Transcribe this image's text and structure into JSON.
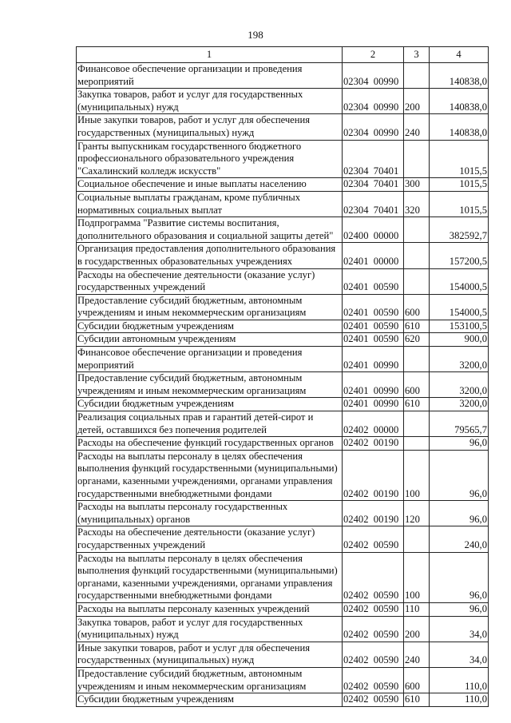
{
  "page_number": "198",
  "table": {
    "headers": [
      "1",
      "2",
      "3",
      "4"
    ],
    "rows": [
      [
        "Финансовое обеспечение организации и проведения мероприятий",
        "02304  00990",
        "",
        "140838,0"
      ],
      [
        "Закупка товаров, работ и услуг для государственных (муниципальных) нужд",
        "02304  00990",
        "200",
        "140838,0"
      ],
      [
        "Иные закупки товаров, работ и услуг для обеспечения государственных (муниципальных) нужд",
        "02304  00990",
        "240",
        "140838,0"
      ],
      [
        "Гранты выпускникам государственного бюджетного профессионального образовательного учреждения \"Сахалинский колледж искусств\"",
        "02304  70401",
        "",
        "1015,5"
      ],
      [
        "Социальное обеспечение и иные выплаты населению",
        "02304  70401",
        "300",
        "1015,5"
      ],
      [
        "Социальные выплаты гражданам, кроме публичных нормативных социальных выплат",
        "02304  70401",
        "320",
        "1015,5"
      ],
      [
        "Подпрограмма \"Развитие системы воспитания, дополнительного образования и социальной защиты детей\"",
        "02400  00000",
        "",
        "382592,7"
      ],
      [
        "Организация предоставления дополнительного образования в государственных образовательных учреждениях",
        "02401  00000",
        "",
        "157200,5"
      ],
      [
        "Расходы на обеспечение деятельности (оказание услуг) государственных учреждений",
        "02401  00590",
        "",
        "154000,5"
      ],
      [
        "Предоставление субсидий бюджетным, автономным учреждениям и иным некоммерческим организациям",
        "02401  00590",
        "600",
        "154000,5"
      ],
      [
        "Субсидии бюджетным учреждениям",
        "02401  00590",
        "610",
        "153100,5"
      ],
      [
        "Субсидии автономным учреждениям",
        "02401  00590",
        "620",
        "900,0"
      ],
      [
        "Финансовое обеспечение организации и проведения мероприятий",
        "02401  00990",
        "",
        "3200,0"
      ],
      [
        "Предоставление субсидий бюджетным, автономным учреждениям и иным некоммерческим организациям",
        "02401  00990",
        "600",
        "3200,0"
      ],
      [
        "Субсидии бюджетным учреждениям",
        "02401  00990",
        "610",
        "3200,0"
      ],
      [
        "Реализация социальных прав и гарантий детей-сирот и детей, оставшихся без попечения родителей",
        "02402  00000",
        "",
        "79565,7"
      ],
      [
        "Расходы на обеспечение функций государственных органов",
        "02402  00190",
        "",
        "96,0"
      ],
      [
        "Расходы на выплаты персоналу в целях обеспечения выполнения функций государственными (муниципальными) органами, казенными учреждениями, органами управления государственными внебюджетными фондами",
        "02402  00190",
        "100",
        "96,0"
      ],
      [
        "Расходы на выплаты персоналу государственных (муниципальных) органов",
        "02402  00190",
        "120",
        "96,0"
      ],
      [
        "Расходы на обеспечение деятельности (оказание услуг) государственных учреждений",
        "02402  00590",
        "",
        "240,0"
      ],
      [
        "Расходы на выплаты персоналу в целях обеспечения выполнения функций государственными (муниципальными) органами, казенными учреждениями, органами управления государственными внебюджетными фондами",
        "02402  00590",
        "100",
        "96,0"
      ],
      [
        "Расходы на выплаты персоналу казенных учреждений",
        "02402  00590",
        "110",
        "96,0"
      ],
      [
        "Закупка товаров, работ и услуг для государственных (муниципальных) нужд",
        "02402  00590",
        "200",
        "34,0"
      ],
      [
        "Иные закупки товаров, работ и услуг для обеспечения государственных (муниципальных) нужд",
        "02402  00590",
        "240",
        "34,0"
      ],
      [
        "Предоставление субсидий бюджетным, автономным учреждениям и иным некоммерческим организациям",
        "02402  00590",
        "600",
        "110,0"
      ],
      [
        "Субсидии бюджетным учреждениям",
        "02402  00590",
        "610",
        "110,0"
      ]
    ]
  }
}
